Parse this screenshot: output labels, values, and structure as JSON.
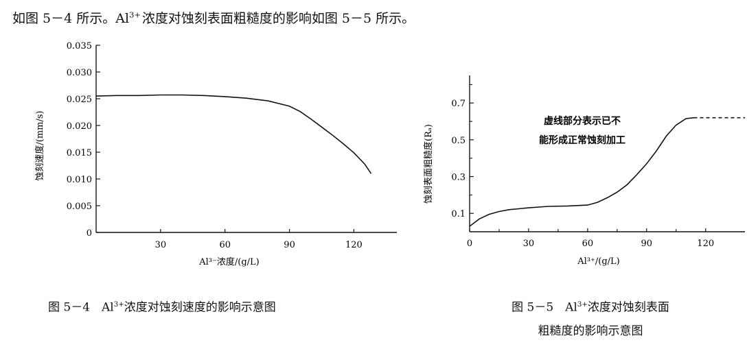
{
  "intro": {
    "lead": "如图 5－4 所示。",
    "ion": "Al",
    "ion_sup": "3+",
    "rest": "浓度对蚀刻表面粗糙度的影响如图 5－5 所示。"
  },
  "captions": {
    "fig4": {
      "prefix": "图 5－4　Al",
      "sup": "3+",
      "suffix": "浓度对蚀刻速度的影响示意图"
    },
    "fig5": {
      "prefix": "图 5－5　Al",
      "sup": "3+",
      "suffix": "浓度对蚀刻表面",
      "line2": "粗糙度的影响示意图"
    }
  },
  "chart_data": [
    {
      "type": "line",
      "xlabel": "Al³⁻浓度/(g/L)",
      "ylabel": "蚀刻速度/(mm/s)",
      "xlim": [
        0,
        140
      ],
      "ylim": [
        0,
        0.035
      ],
      "x_ticks": [
        "30",
        "60",
        "90",
        "120"
      ],
      "y_ticks": [
        "0",
        "0.005",
        "0.010",
        "0.015",
        "0.020",
        "0.025",
        "0.030",
        "0.035"
      ],
      "series": [
        {
          "x": [
            0,
            10,
            20,
            30,
            40,
            50,
            60,
            70,
            80,
            90,
            95,
            100,
            105,
            110,
            115,
            120,
            125,
            128
          ],
          "y": [
            0.0255,
            0.0256,
            0.0256,
            0.0257,
            0.0257,
            0.0256,
            0.0254,
            0.0251,
            0.0246,
            0.0236,
            0.0226,
            0.0212,
            0.0197,
            0.0182,
            0.0166,
            0.0149,
            0.0128,
            0.011
          ]
        }
      ]
    },
    {
      "type": "line",
      "xlabel": "Al³⁺/(g/L)",
      "ylabel": "蚀刻表面粗糙度(Rₐ)",
      "xlim": [
        0,
        140
      ],
      "ylim": [
        0,
        0.85
      ],
      "x_ticks": [
        "0",
        "30",
        "60",
        "90",
        "120"
      ],
      "y_ticks": [
        "0.1",
        "0.3",
        "0.5",
        "0.7"
      ],
      "annotation": [
        "虚线部分表示已不",
        "能形成正常蚀刻加工"
      ],
      "series": [
        {
          "style": "solid",
          "x": [
            0,
            5,
            10,
            15,
            20,
            30,
            40,
            50,
            60,
            65,
            70,
            75,
            80,
            85,
            90,
            95,
            100,
            105,
            110,
            114
          ],
          "y": [
            0.03,
            0.07,
            0.095,
            0.11,
            0.12,
            0.13,
            0.138,
            0.14,
            0.145,
            0.16,
            0.185,
            0.215,
            0.255,
            0.31,
            0.37,
            0.44,
            0.52,
            0.58,
            0.615,
            0.62
          ]
        },
        {
          "style": "dashed",
          "x": [
            114,
            120,
            130,
            140
          ],
          "y": [
            0.62,
            0.62,
            0.62,
            0.62
          ]
        }
      ]
    }
  ]
}
